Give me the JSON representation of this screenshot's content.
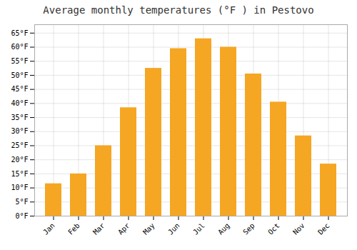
{
  "chart_data": {
    "type": "bar",
    "title": "Average monthly temperatures (°F ) in Pestovo",
    "categories": [
      "Jan",
      "Feb",
      "Mar",
      "Apr",
      "May",
      "Jun",
      "Jul",
      "Aug",
      "Sep",
      "Oct",
      "Nov",
      "Dec"
    ],
    "values": [
      11.5,
      15.0,
      25.0,
      38.5,
      52.5,
      59.5,
      63.0,
      60.0,
      50.5,
      40.5,
      28.5,
      18.5
    ],
    "color": "#F5A623",
    "ylim": [
      0,
      68
    ],
    "yticks": [
      {
        "value": 0,
        "label": "0°F"
      },
      {
        "value": 5,
        "label": "5°F"
      },
      {
        "value": 10,
        "label": "10°F"
      },
      {
        "value": 15,
        "label": "15°F"
      },
      {
        "value": 20,
        "label": "20°F"
      },
      {
        "value": 25,
        "label": "25°F"
      },
      {
        "value": 30,
        "label": "30°F"
      },
      {
        "value": 35,
        "label": "35°F"
      },
      {
        "value": 40,
        "label": "40°F"
      },
      {
        "value": 45,
        "label": "45°F"
      },
      {
        "value": 50,
        "label": "50°F"
      },
      {
        "value": 55,
        "label": "55°F"
      },
      {
        "value": 60,
        "label": "60°F"
      },
      {
        "value": 65,
        "label": "65°F"
      }
    ],
    "grid": true
  }
}
